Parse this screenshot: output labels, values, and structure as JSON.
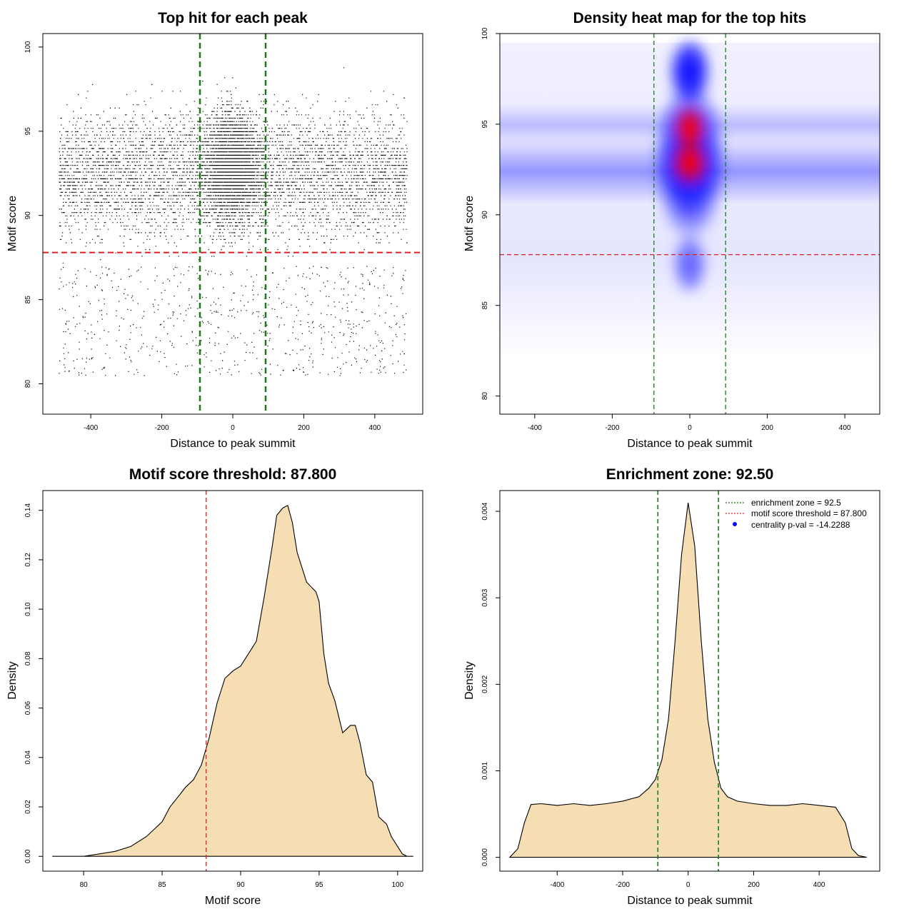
{
  "chart_data": [
    {
      "type": "scatter",
      "title": "Top hit for each peak",
      "xlabel": "Distance to peak summit",
      "ylabel": "Motif score",
      "xlim": [
        -535,
        535
      ],
      "ylim": [
        78.2,
        100.8
      ],
      "xticks": [
        -400,
        -200,
        0,
        200,
        400
      ],
      "yticks": [
        80,
        85,
        90,
        95,
        100
      ],
      "x_data_range": [
        -490,
        490
      ],
      "y_data_range": [
        79,
        100
      ],
      "vlines": [
        -92.5,
        92.5
      ],
      "hline": 87.8,
      "point_color": "#000000",
      "vline_color": "#1a7a1a",
      "hline_color": "#e02020",
      "grid": false
    },
    {
      "type": "heatmap",
      "title": "Density heat map for the top hits",
      "xlabel": "Distance to peak summit",
      "ylabel": "Motif score",
      "xlim": [
        -490,
        490
      ],
      "ylim": [
        79,
        100
      ],
      "xticks": [
        -400,
        -200,
        0,
        200,
        400
      ],
      "yticks": [
        80,
        85,
        90,
        95,
        100
      ],
      "vlines": [
        -92.5,
        92.5
      ],
      "hline": 87.8,
      "colors": [
        "#ffffff",
        "#0000ff",
        "#ff0000"
      ],
      "vline_color": "#1a7a1a",
      "hline_color": "#e02020",
      "grid": false
    },
    {
      "type": "area",
      "title": "Motif score threshold: 87.800",
      "xlabel": "Motif score",
      "ylabel": "Density",
      "xlim": [
        77.4,
        101.6
      ],
      "ylim": [
        -0.006,
        0.148
      ],
      "xticks": [
        80,
        85,
        90,
        95,
        100
      ],
      "yticks": [
        0,
        0.02,
        0.04,
        0.06,
        0.08,
        0.1,
        0.12,
        0.14
      ],
      "ytick_labels": [
        "0.00",
        "0.02",
        "0.04",
        "0.06",
        "0.08",
        "0.10",
        "0.12",
        "0.14"
      ],
      "x": [
        78,
        80,
        81,
        82,
        83,
        84,
        85,
        85.5,
        86,
        86.5,
        87,
        87.5,
        88,
        88.5,
        89,
        89.5,
        90,
        90.5,
        91,
        91.5,
        92,
        92.3,
        92.7,
        93,
        93.3,
        93.6,
        94,
        94.2,
        94.5,
        94.8,
        95,
        95.3,
        95.6,
        96,
        96.5,
        97,
        97.3,
        97.6,
        98,
        98.4,
        98.8,
        99.3,
        99.6,
        100,
        100.3,
        100.6,
        101
      ],
      "y": [
        0,
        0,
        0.001,
        0.002,
        0.004,
        0.008,
        0.014,
        0.02,
        0.024,
        0.028,
        0.031,
        0.037,
        0.048,
        0.062,
        0.072,
        0.075,
        0.077,
        0.082,
        0.087,
        0.105,
        0.125,
        0.138,
        0.141,
        0.142,
        0.135,
        0.123,
        0.115,
        0.111,
        0.109,
        0.107,
        0.103,
        0.082,
        0.07,
        0.063,
        0.05,
        0.053,
        0.053,
        0.046,
        0.033,
        0.03,
        0.016,
        0.013,
        0.008,
        0.004,
        0.001,
        0,
        0
      ],
      "vline": 87.8,
      "fill_color": "#f5deb3",
      "line_color": "#000000",
      "vline_color": "#e02020",
      "grid": false
    },
    {
      "type": "area",
      "title": "Enrichment zone: 92.50",
      "xlabel": "Distance to peak summit",
      "ylabel": "Density",
      "xlim": [
        -575,
        585
      ],
      "ylim": [
        -0.00016,
        0.00424
      ],
      "xticks": [
        -400,
        -200,
        0,
        200,
        400
      ],
      "yticks": [
        0,
        0.001,
        0.002,
        0.003,
        0.004
      ],
      "ytick_labels": [
        "0.000",
        "0.001",
        "0.002",
        "0.003",
        "0.004"
      ],
      "x": [
        -545,
        -520,
        -500,
        -480,
        -450,
        -400,
        -350,
        -300,
        -250,
        -200,
        -150,
        -120,
        -100,
        -80,
        -60,
        -40,
        -20,
        0,
        20,
        40,
        60,
        80,
        100,
        120,
        150,
        200,
        250,
        300,
        350,
        400,
        450,
        480,
        500,
        520,
        545
      ],
      "y": [
        0,
        0.0001,
        0.0004,
        0.00061,
        0.00062,
        0.0006,
        0.00062,
        0.0006,
        0.00062,
        0.00065,
        0.0007,
        0.0008,
        0.0009,
        0.00113,
        0.0016,
        0.0025,
        0.0035,
        0.0041,
        0.0036,
        0.0025,
        0.0016,
        0.0011,
        0.0008,
        0.0007,
        0.00065,
        0.00062,
        0.0006,
        0.0006,
        0.00062,
        0.0006,
        0.00058,
        0.0004,
        0.0001,
        2e-05,
        0
      ],
      "vlines": [
        -92.5,
        92.5
      ],
      "fill_color": "#f5deb3",
      "line_color": "#000000",
      "vline_color": "#1a7a1a",
      "legend": [
        {
          "label": "enrichment zone = 92.5",
          "style": "dotted-line",
          "color": "#1a7a1a"
        },
        {
          "label": "motif score threshold = 87.800",
          "style": "dotted-line",
          "color": "#e02020"
        },
        {
          "label": "centrality p-val = -14.2288",
          "style": "dot",
          "color": "#0000ff"
        }
      ],
      "legend_position": "top-right",
      "grid": false
    }
  ]
}
